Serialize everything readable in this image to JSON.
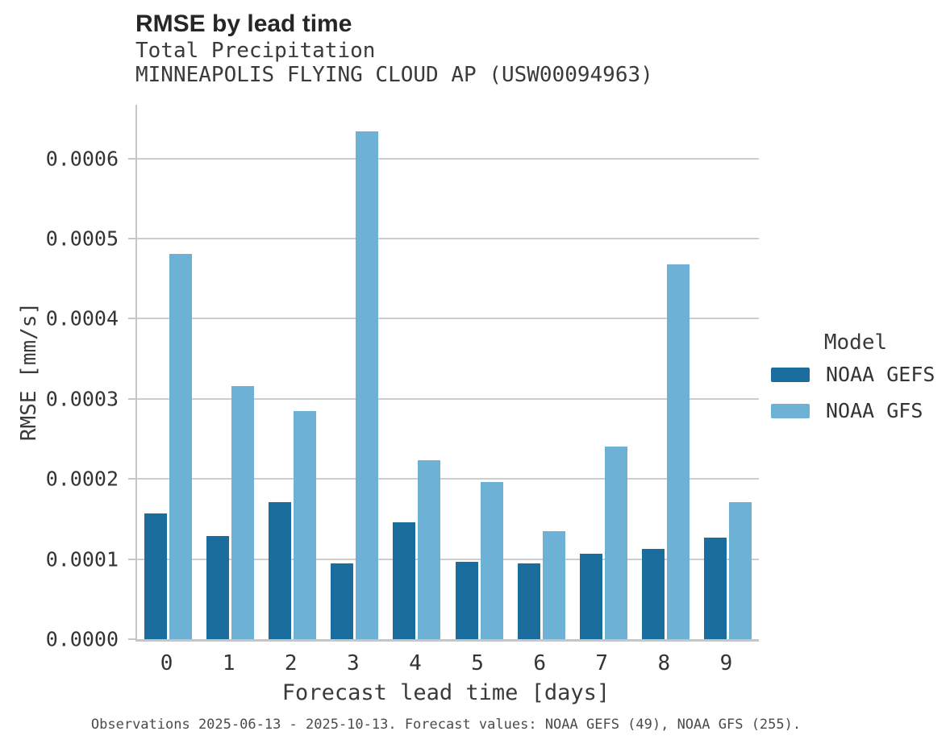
{
  "header": {
    "title": "RMSE by lead time",
    "subtitle1": "Total Precipitation",
    "subtitle2": "MINNEAPOLIS FLYING CLOUD AP (USW00094963)"
  },
  "chart_data": {
    "type": "bar",
    "title": "RMSE by lead time",
    "subtitle1": "Total Precipitation",
    "subtitle2": "MINNEAPOLIS FLYING CLOUD AP (USW00094963)",
    "categories": [
      "0",
      "1",
      "2",
      "3",
      "4",
      "5",
      "6",
      "7",
      "8",
      "9"
    ],
    "series": [
      {
        "name": "NOAA GEFS",
        "color": "#1b6d9e",
        "values": [
          0.000157,
          0.000129,
          0.000171,
          9.5e-05,
          0.000146,
          9.7e-05,
          9.5e-05,
          0.000107,
          0.000113,
          0.000127
        ]
      },
      {
        "name": "NOAA GFS",
        "color": "#6db1d7",
        "values": [
          0.000481,
          0.000316,
          0.000285,
          0.000634,
          0.000223,
          0.000196,
          0.000135,
          0.00024,
          0.000468,
          0.000171
        ]
      }
    ],
    "xlabel": "Forecast lead time [days]",
    "ylabel": "RMSE [mm/s]",
    "ylim": [
      0,
      0.000667
    ],
    "ytick_values": [
      0.0,
      0.0001,
      0.0002,
      0.0003,
      0.0004,
      0.0005,
      0.0006
    ],
    "ytick_labels": [
      "0.0000",
      "0.0001",
      "0.0002",
      "0.0003",
      "0.0004",
      "0.0005",
      "0.0006"
    ],
    "grid": "horizontal",
    "legend_position": "right"
  },
  "legend": {
    "title": "Model",
    "entries": [
      {
        "label": "NOAA GEFS",
        "color": "#1b6d9e"
      },
      {
        "label": "NOAA GFS",
        "color": "#6db1d7"
      }
    ]
  },
  "caption": "Observations 2025-06-13 - 2025-10-13. Forecast values: NOAA GEFS (49), NOAA GFS (255).",
  "colors": {
    "gridline": "#cdcdcd",
    "spine": "#c6c6c6",
    "title_text": "#262626",
    "body_text": "#343434",
    "caption_text": "#4b4b4b"
  }
}
